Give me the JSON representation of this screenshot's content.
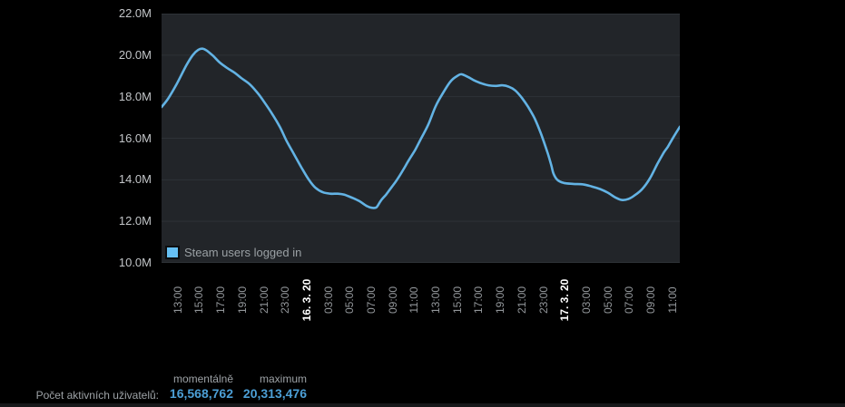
{
  "page": {
    "background": "#000000"
  },
  "chart": {
    "legend_label": "Steam users logged in",
    "colors": {
      "line": "#63b3e4",
      "legend_swatch": "#66c0f4",
      "plot_background": "#222529",
      "gridline": "#2e3237",
      "y_axis_text": "#c2c5c8",
      "x_axis_text": "#93979b",
      "x_axis_date_text": "#ffffff",
      "stat_value_text": "#4c9fd6"
    }
  },
  "chart_data": {
    "type": "line",
    "title": "",
    "xlabel": "",
    "ylabel": "",
    "grid": true,
    "legend_position": "bottom-left-inside",
    "ylim": [
      10,
      22
    ],
    "y_ticks": [
      {
        "label": "22.0M",
        "value": 22
      },
      {
        "label": "20.0M",
        "value": 20
      },
      {
        "label": "18.0M",
        "value": 18
      },
      {
        "label": "16.0M",
        "value": 16
      },
      {
        "label": "14.0M",
        "value": 14
      },
      {
        "label": "12.0M",
        "value": 12
      },
      {
        "label": "10.0M",
        "value": 10
      }
    ],
    "x_unit": "hours since first tick (15.3. 13:00); ticks every 2 h",
    "x_range_hours": [
      -1.5,
      46.7
    ],
    "x_ticks": [
      {
        "label": "13:00",
        "bold": false
      },
      {
        "label": "15:00",
        "bold": false
      },
      {
        "label": "17:00",
        "bold": false
      },
      {
        "label": "19:00",
        "bold": false
      },
      {
        "label": "21:00",
        "bold": false
      },
      {
        "label": "23:00",
        "bold": false
      },
      {
        "label": "16. 3. 20",
        "bold": true
      },
      {
        "label": "03:00",
        "bold": false
      },
      {
        "label": "05:00",
        "bold": false
      },
      {
        "label": "07:00",
        "bold": false
      },
      {
        "label": "09:00",
        "bold": false
      },
      {
        "label": "11:00",
        "bold": false
      },
      {
        "label": "13:00",
        "bold": false
      },
      {
        "label": "15:00",
        "bold": false
      },
      {
        "label": "17:00",
        "bold": false
      },
      {
        "label": "19:00",
        "bold": false
      },
      {
        "label": "21:00",
        "bold": false
      },
      {
        "label": "23:00",
        "bold": false
      },
      {
        "label": "17. 3. 20",
        "bold": true
      },
      {
        "label": "03:00",
        "bold": false
      },
      {
        "label": "05:00",
        "bold": false
      },
      {
        "label": "07:00",
        "bold": false
      },
      {
        "label": "09:00",
        "bold": false
      },
      {
        "label": "11:00",
        "bold": false
      }
    ],
    "series": [
      {
        "name": "Steam users logged in",
        "unit": "millions of users",
        "points": [
          [
            -1.5,
            17.5
          ],
          [
            -0.9,
            17.9
          ],
          [
            -0.1,
            18.6
          ],
          [
            0.8,
            19.5
          ],
          [
            1.4,
            20.0
          ],
          [
            1.9,
            20.25
          ],
          [
            2.3,
            20.31
          ],
          [
            2.7,
            20.22
          ],
          [
            3.3,
            19.96
          ],
          [
            3.9,
            19.65
          ],
          [
            4.6,
            19.38
          ],
          [
            5.3,
            19.15
          ],
          [
            5.9,
            18.9
          ],
          [
            6.7,
            18.6
          ],
          [
            7.4,
            18.2
          ],
          [
            8.0,
            17.78
          ],
          [
            8.8,
            17.16
          ],
          [
            9.5,
            16.55
          ],
          [
            10.1,
            15.9
          ],
          [
            10.8,
            15.25
          ],
          [
            11.5,
            14.6
          ],
          [
            12.2,
            14.0
          ],
          [
            12.8,
            13.62
          ],
          [
            13.5,
            13.4
          ],
          [
            14.2,
            13.33
          ],
          [
            14.9,
            13.33
          ],
          [
            15.5,
            13.28
          ],
          [
            16.2,
            13.14
          ],
          [
            16.9,
            12.97
          ],
          [
            17.6,
            12.73
          ],
          [
            18.1,
            12.65
          ],
          [
            18.5,
            12.68
          ],
          [
            18.9,
            13.0
          ],
          [
            19.4,
            13.3
          ],
          [
            19.9,
            13.65
          ],
          [
            20.4,
            14.0
          ],
          [
            21.0,
            14.5
          ],
          [
            21.5,
            14.95
          ],
          [
            22.1,
            15.45
          ],
          [
            22.7,
            16.05
          ],
          [
            23.3,
            16.65
          ],
          [
            24.0,
            17.55
          ],
          [
            24.7,
            18.2
          ],
          [
            25.4,
            18.75
          ],
          [
            26.0,
            19.0
          ],
          [
            26.4,
            19.08
          ],
          [
            27.0,
            18.95
          ],
          [
            27.6,
            18.78
          ],
          [
            28.2,
            18.65
          ],
          [
            28.9,
            18.55
          ],
          [
            29.6,
            18.52
          ],
          [
            30.2,
            18.55
          ],
          [
            30.8,
            18.48
          ],
          [
            31.4,
            18.3
          ],
          [
            32.0,
            17.95
          ],
          [
            32.6,
            17.5
          ],
          [
            33.2,
            16.95
          ],
          [
            33.8,
            16.2
          ],
          [
            34.4,
            15.3
          ],
          [
            34.75,
            14.7
          ],
          [
            34.95,
            14.3
          ],
          [
            35.3,
            14.0
          ],
          [
            35.9,
            13.85
          ],
          [
            36.8,
            13.8
          ],
          [
            37.7,
            13.78
          ],
          [
            38.5,
            13.68
          ],
          [
            39.3,
            13.55
          ],
          [
            40.0,
            13.38
          ],
          [
            40.7,
            13.15
          ],
          [
            41.3,
            13.03
          ],
          [
            41.9,
            13.07
          ],
          [
            42.5,
            13.25
          ],
          [
            43.2,
            13.55
          ],
          [
            43.9,
            14.05
          ],
          [
            44.6,
            14.75
          ],
          [
            45.2,
            15.3
          ],
          [
            45.6,
            15.6
          ],
          [
            46.1,
            16.05
          ],
          [
            46.7,
            16.55
          ]
        ]
      }
    ]
  },
  "stats": {
    "row_label": "Počet aktivních uživatelů:",
    "columns": [
      {
        "header": "momentálně",
        "value": "16,568,762"
      },
      {
        "header": "maximum",
        "value": "20,313,476"
      }
    ]
  }
}
